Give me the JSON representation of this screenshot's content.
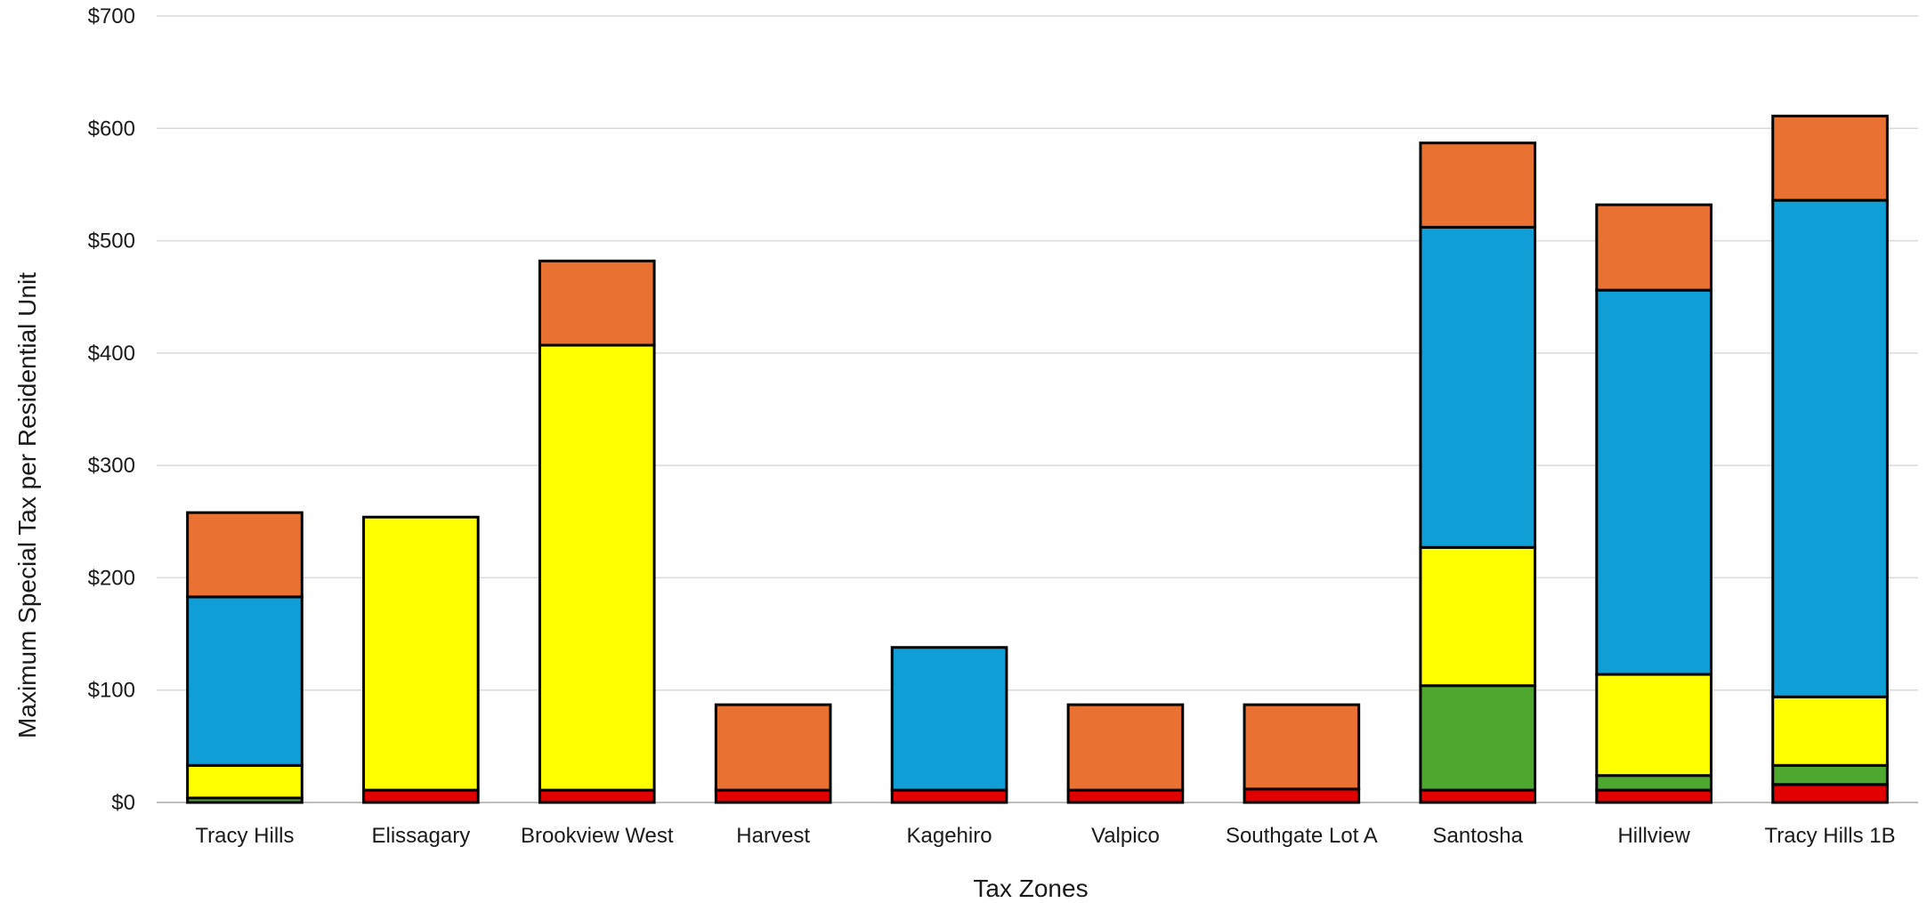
{
  "chart_data": {
    "type": "bar",
    "stacked": true,
    "title": "",
    "xlabel": "Tax Zones",
    "ylabel": "Maximum Special Tax per Residential Unit",
    "ylim": [
      0,
      700
    ],
    "yticks": [
      0,
      100,
      200,
      300,
      400,
      500,
      600,
      700
    ],
    "ytick_labels": [
      "$0",
      "$100",
      "$200",
      "$300",
      "$400",
      "$500",
      "$600",
      "$700"
    ],
    "grid": true,
    "legend": "none",
    "categories": [
      "Tracy Hills",
      "Elissagary",
      "Brookview West",
      "Harvest",
      "Kagehiro",
      "Valpico",
      "Southgate Lot A",
      "Santosha",
      "Hillview",
      "Tracy Hills 1B"
    ],
    "series": [
      {
        "color": "#e00000",
        "values": [
          0,
          11,
          11,
          11,
          11,
          11,
          12,
          11,
          11,
          16
        ]
      },
      {
        "color": "#4ea72e",
        "values": [
          4,
          0,
          0,
          0,
          0,
          0,
          0,
          93,
          13,
          17
        ]
      },
      {
        "color": "#ffff00",
        "values": [
          29,
          243,
          396,
          0,
          0,
          0,
          0,
          123,
          90,
          61
        ]
      },
      {
        "color": "#0f9ed5",
        "values": [
          150,
          0,
          0,
          0,
          127,
          0,
          0,
          285,
          342,
          442
        ]
      },
      {
        "color": "#e97132",
        "values": [
          75,
          0,
          75,
          76,
          0,
          76,
          75,
          75,
          76,
          75
        ]
      }
    ]
  }
}
